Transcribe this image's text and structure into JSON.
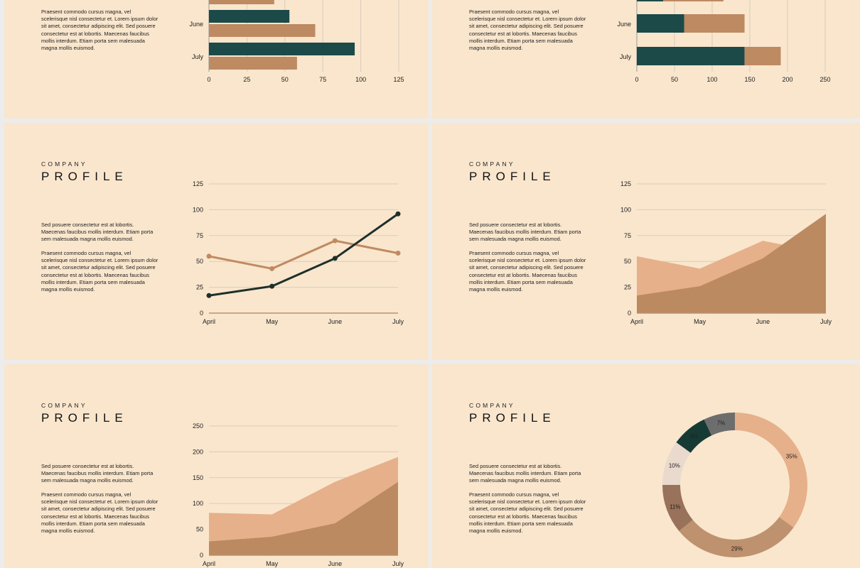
{
  "slide": {
    "company": "COMPANY",
    "profile": "PROFILE",
    "para1": "Sed posuere consectetur est at lobortis. Maecenas faucibus mollis interdum. Etiam porta sem malesuada magna mollis euismod.",
    "para2": "Praesent commodo cursus magna, vel scelerisque nisl consectetur et. Lorem ipsum dolor sit amet, consectetur adipiscing elit. Sed posuere consectetur est at lobortis. Maecenas faucibus mollis interdum. Etiam porta sem malesuada magna mollis euismod."
  },
  "colors": {
    "background": "#f9e6cd",
    "dark_teal": "#1b4a48",
    "tan": "#bd8a62",
    "light_tan": "#e6b08a",
    "area_dark": "#bc8a60",
    "line_dark": "#1e302a",
    "grid": "#d9ccbb"
  },
  "chart_data": [
    {
      "type": "bar",
      "orientation": "horizontal",
      "categories": [
        "June",
        "July"
      ],
      "series": [
        {
          "values": [
            53,
            96
          ],
          "color": "#1b4a48"
        },
        {
          "values": [
            70,
            58
          ],
          "color": "#bd8a62"
        }
      ],
      "partial_top_bar": 43,
      "xticks": [
        "0",
        "25",
        "50",
        "75",
        "100",
        "125"
      ],
      "xlim": [
        0,
        125
      ]
    },
    {
      "type": "bar",
      "orientation": "horizontal",
      "stacked": true,
      "categories": [
        "June",
        "July"
      ],
      "series": [
        {
          "values": [
            63,
            143
          ],
          "color": "#1b4a48"
        },
        {
          "values": [
            80,
            48
          ],
          "color": "#bd8a62"
        }
      ],
      "partial_top_bar": [
        35,
        80
      ],
      "xticks": [
        "0",
        "50",
        "100",
        "150",
        "200",
        "250"
      ],
      "xlim": [
        0,
        250
      ]
    },
    {
      "type": "line",
      "categories": [
        "April",
        "May",
        "June",
        "July"
      ],
      "series": [
        {
          "values": [
            55,
            43,
            70,
            58
          ],
          "color": "#c08a60"
        },
        {
          "values": [
            17,
            26,
            53,
            96
          ],
          "color": "#1e302a"
        }
      ],
      "yticks": [
        "0",
        "25",
        "50",
        "75",
        "100",
        "125"
      ],
      "ylim": [
        0,
        125
      ]
    },
    {
      "type": "area",
      "categories": [
        "April",
        "May",
        "June",
        "July"
      ],
      "series": [
        {
          "values": [
            55,
            43,
            70,
            58
          ],
          "color": "#e6b08a"
        },
        {
          "values": [
            17,
            26,
            53,
            96
          ],
          "color": "#bc8a60"
        }
      ],
      "yticks": [
        "0",
        "25",
        "50",
        "75",
        "100",
        "125"
      ],
      "ylim": [
        0,
        125
      ]
    },
    {
      "type": "area",
      "stacked": true,
      "categories": [
        "April",
        "May",
        "June",
        "July"
      ],
      "series": [
        {
          "values": [
            27,
            36,
            62,
            142
          ],
          "color": "#bc8a60"
        },
        {
          "values": [
            55,
            43,
            80,
            48
          ],
          "color": "#e6b08a"
        }
      ],
      "yticks": [
        "0",
        "50",
        "100",
        "150",
        "200",
        "250"
      ],
      "ylim": [
        0,
        250
      ]
    },
    {
      "type": "pie",
      "donut": true,
      "slices": [
        {
          "label": "35%",
          "value": 35,
          "color": "#e6b08a"
        },
        {
          "label": "29%",
          "value": 29,
          "color": "#be916f"
        },
        {
          "label": "11%",
          "value": 11,
          "color": "#98725a"
        },
        {
          "label": "10%",
          "value": 10,
          "color": "#ead9cd"
        },
        {
          "label": "8%",
          "value": 8,
          "color": "#163b34"
        },
        {
          "label": "7%",
          "value": 7,
          "color": "#6d6d6d"
        }
      ]
    }
  ]
}
